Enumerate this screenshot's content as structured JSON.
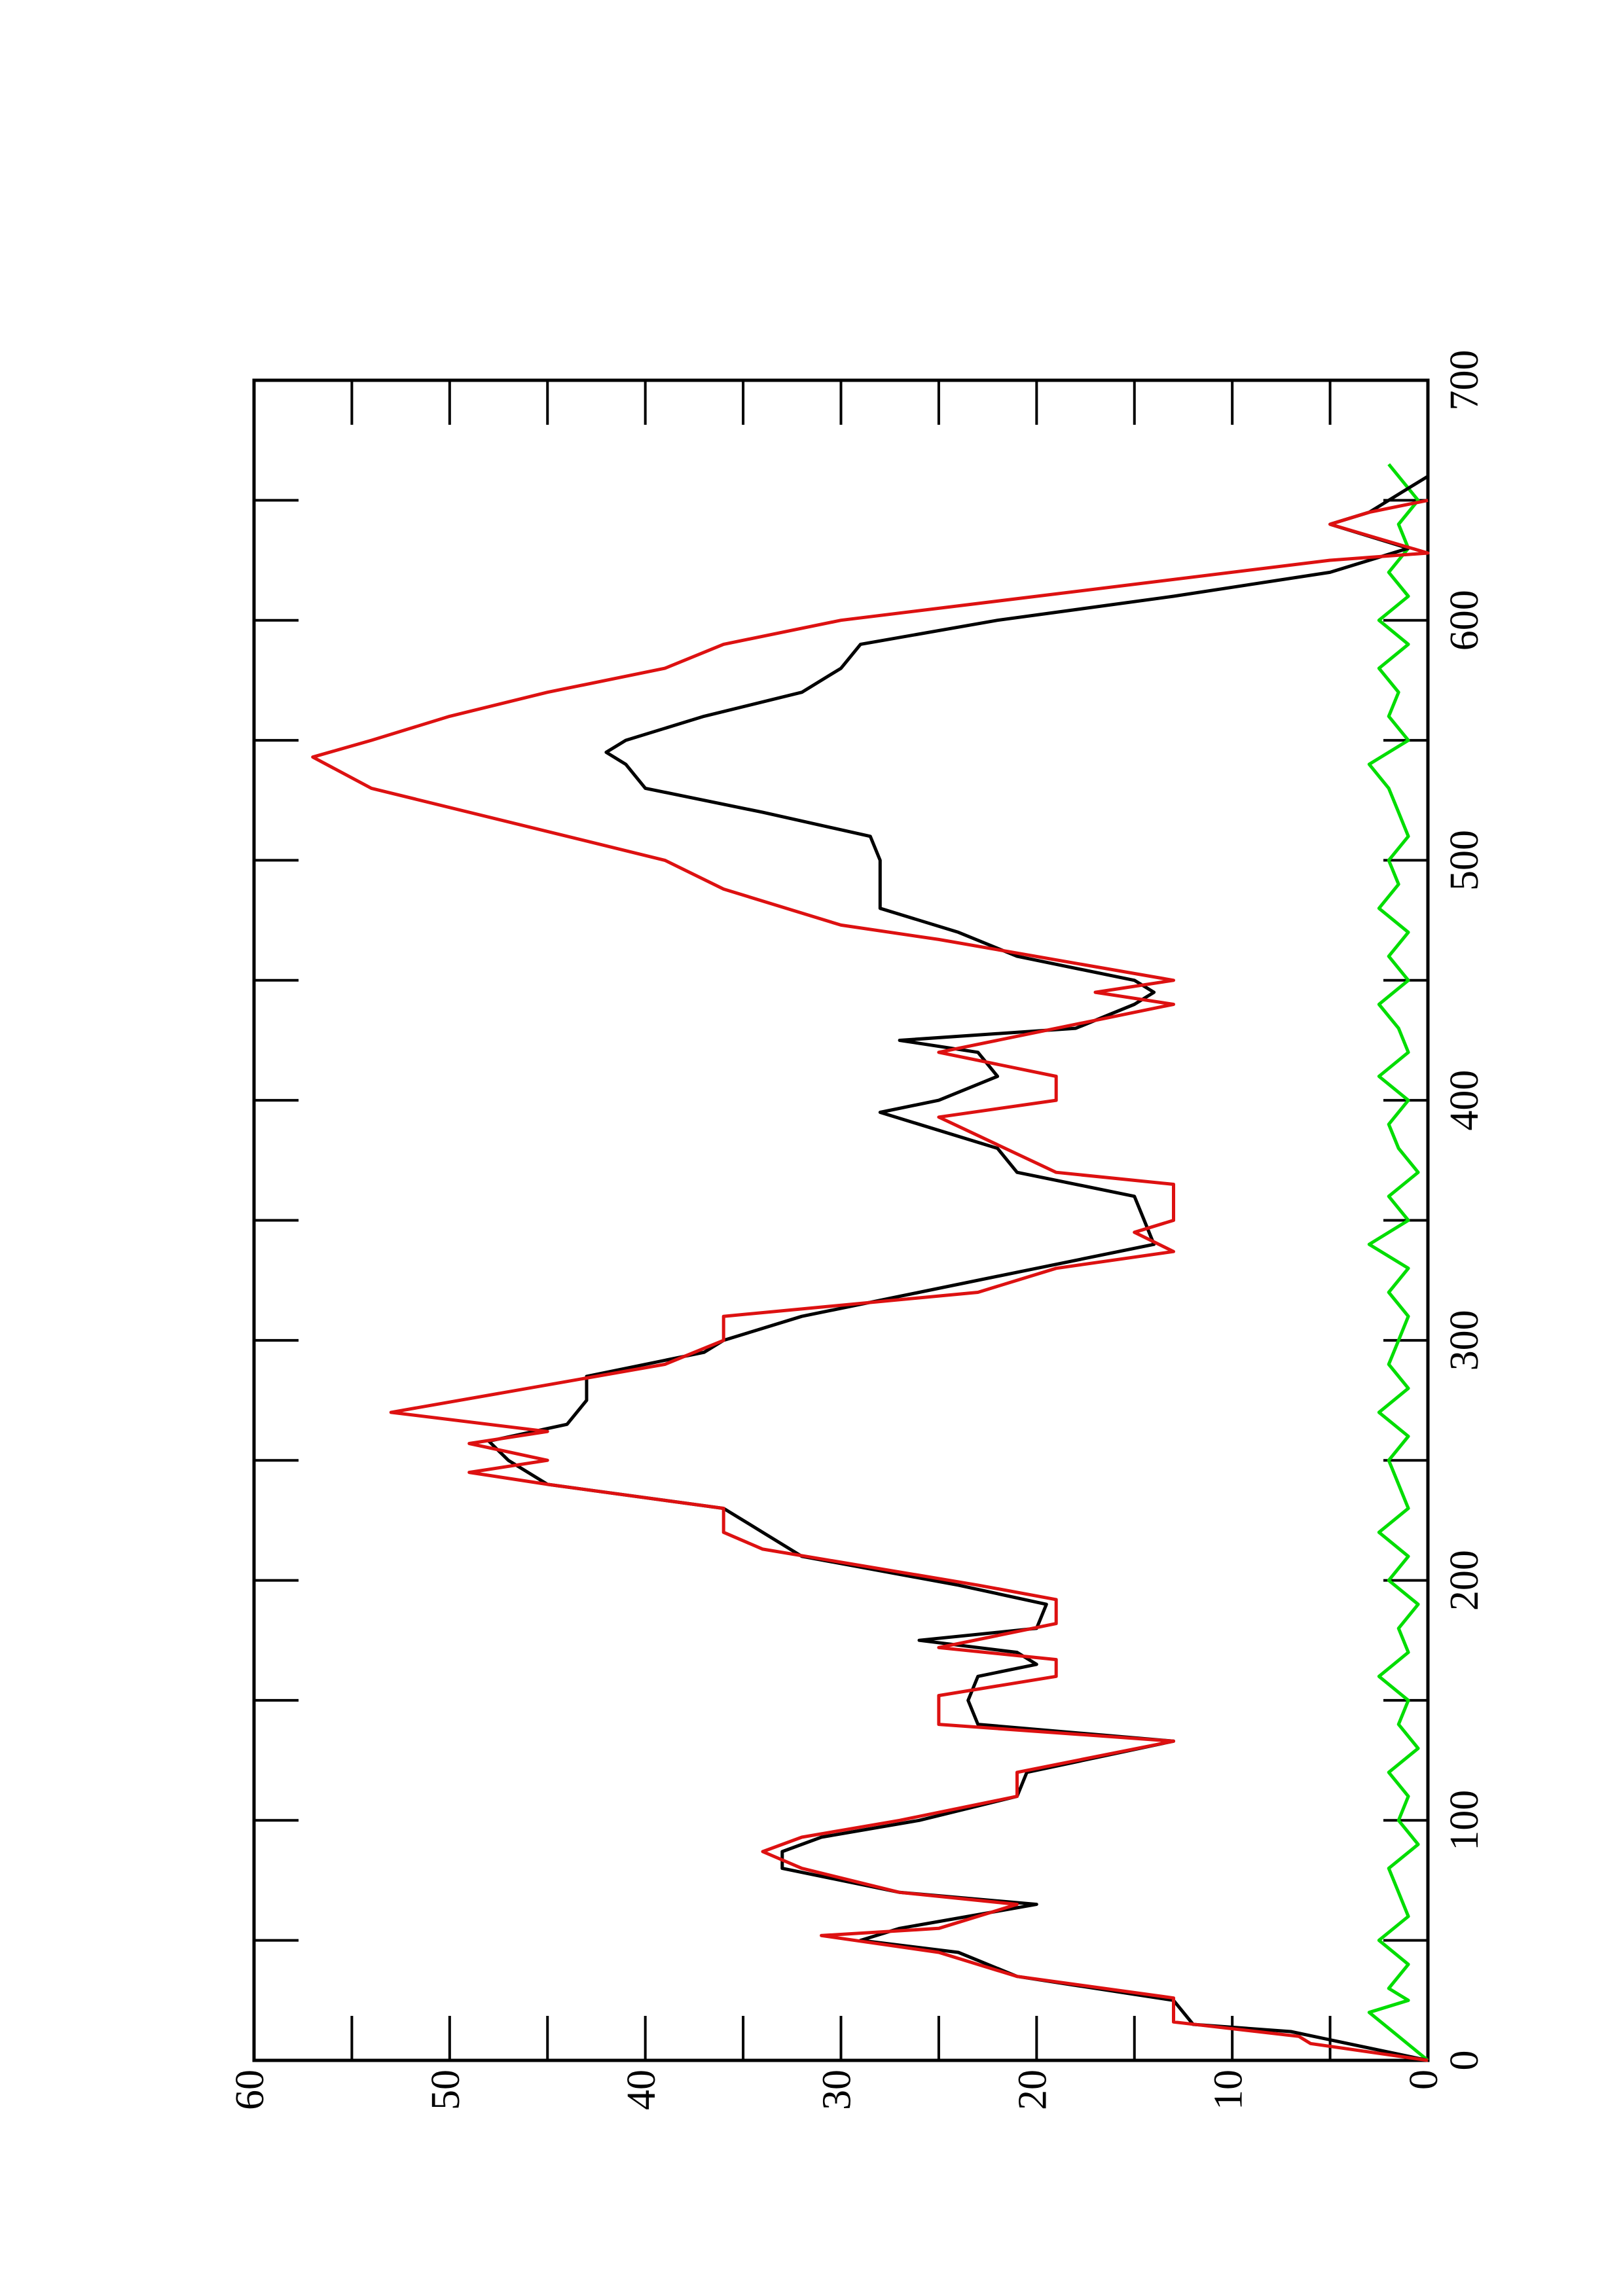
{
  "chart_data": {
    "type": "line",
    "xlim": [
      0,
      700
    ],
    "xticks": [
      0,
      100,
      200,
      300,
      400,
      500,
      600,
      700
    ],
    "ylim": [
      0,
      60
    ],
    "yticks": [
      0,
      10,
      20,
      30,
      40,
      50,
      60
    ],
    "series": [
      {
        "color": "#000000",
        "x": [
          0,
          12,
          15,
          25,
          35,
          45,
          50,
          55,
          65,
          70,
          80,
          87,
          93,
          100,
          110,
          120,
          133,
          140,
          150,
          160,
          165,
          170,
          175,
          180,
          190,
          198,
          210,
          220,
          230,
          240,
          250,
          258,
          265,
          275,
          285,
          295,
          300,
          310,
          320,
          330,
          340,
          350,
          360,
          370,
          380,
          390,
          395,
          400,
          410,
          420,
          425,
          430,
          440,
          445,
          450,
          460,
          470,
          480,
          490,
          500,
          510,
          520,
          530,
          540,
          545,
          550,
          560,
          570,
          580,
          590,
          600,
          610,
          620,
          630,
          640,
          645,
          650,
          655,
          660
        ],
        "values": [
          0,
          7,
          12,
          13,
          21,
          24,
          29,
          27,
          20,
          27,
          33,
          33,
          31,
          26,
          21,
          20.5,
          13,
          23,
          23.5,
          23,
          20,
          21,
          26,
          20,
          19.5,
          24,
          32,
          34,
          36,
          45,
          47,
          48,
          44,
          43,
          43,
          37,
          36,
          32,
          26,
          20,
          14,
          14.5,
          15,
          21,
          22,
          26,
          28,
          25,
          22,
          23,
          27,
          18,
          15,
          14,
          15,
          21,
          24,
          28,
          28,
          28,
          28.5,
          34,
          40,
          41,
          42,
          41,
          37,
          32,
          30,
          29,
          22,
          13,
          5,
          1,
          5,
          3,
          2,
          1,
          0
        ]
      },
      {
        "color": "#dd1111",
        "x": [
          0,
          7,
          10,
          16,
          26,
          35,
          45,
          52,
          55,
          65,
          70,
          80,
          87,
          93,
          100,
          110,
          120,
          133,
          140,
          152,
          160,
          167,
          172,
          182,
          192,
          198,
          213,
          220,
          230,
          240,
          245,
          250,
          257,
          262,
          270,
          290,
          300,
          310,
          320,
          330,
          337,
          345,
          350,
          365,
          370,
          393,
          400,
          410,
          420,
          440,
          445,
          450,
          467,
          473,
          488,
          500,
          530,
          543,
          550,
          560,
          570,
          580,
          590,
          600,
          625,
          628,
          640,
          645,
          650
        ],
        "values": [
          0,
          6,
          6.6,
          13,
          13,
          21,
          25,
          31,
          25,
          21,
          27,
          32,
          34,
          32,
          27,
          21,
          21,
          13,
          25,
          25,
          19,
          19,
          25,
          19,
          19,
          23,
          34,
          36,
          36,
          45,
          49,
          45,
          49,
          45,
          53,
          39,
          36,
          36,
          23,
          19,
          13,
          15,
          13,
          13,
          19,
          25,
          19,
          19,
          25,
          13,
          17,
          13,
          25,
          30,
          36,
          39,
          54,
          57,
          54,
          50,
          45,
          39,
          36,
          30,
          5,
          0,
          5,
          3,
          0
        ]
      },
      {
        "color": "#00dd00",
        "x": [
          0,
          10,
          20,
          25,
          30,
          40,
          50,
          60,
          70,
          80,
          90,
          100,
          110,
          120,
          130,
          140,
          150,
          160,
          170,
          180,
          190,
          200,
          210,
          220,
          230,
          240,
          250,
          260,
          270,
          280,
          290,
          300,
          310,
          320,
          330,
          340,
          350,
          360,
          370,
          380,
          390,
          400,
          410,
          420,
          430,
          440,
          450,
          460,
          470,
          480,
          490,
          500,
          510,
          520,
          530,
          540,
          550,
          560,
          570,
          580,
          590,
          600,
          610,
          620,
          630,
          640,
          650,
          660,
          665
        ],
        "values": [
          0,
          1.5,
          3,
          1,
          2,
          1,
          2.5,
          1,
          1.5,
          2,
          0.5,
          1.5,
          1,
          2,
          0.5,
          1.5,
          1,
          2.5,
          1,
          1.5,
          0.5,
          2,
          1,
          2.5,
          1,
          1.5,
          2,
          1,
          2.5,
          1,
          2,
          1.5,
          1,
          2,
          1,
          3,
          1,
          2,
          0.5,
          1.5,
          2,
          1,
          2.5,
          1,
          1.5,
          2.5,
          1,
          2,
          1,
          2.5,
          1.5,
          2,
          1,
          1.5,
          2,
          3,
          1,
          2,
          1.5,
          2.5,
          1,
          2.5,
          1,
          2,
          1,
          1.5,
          0.5,
          1.5,
          2
        ]
      }
    ]
  }
}
